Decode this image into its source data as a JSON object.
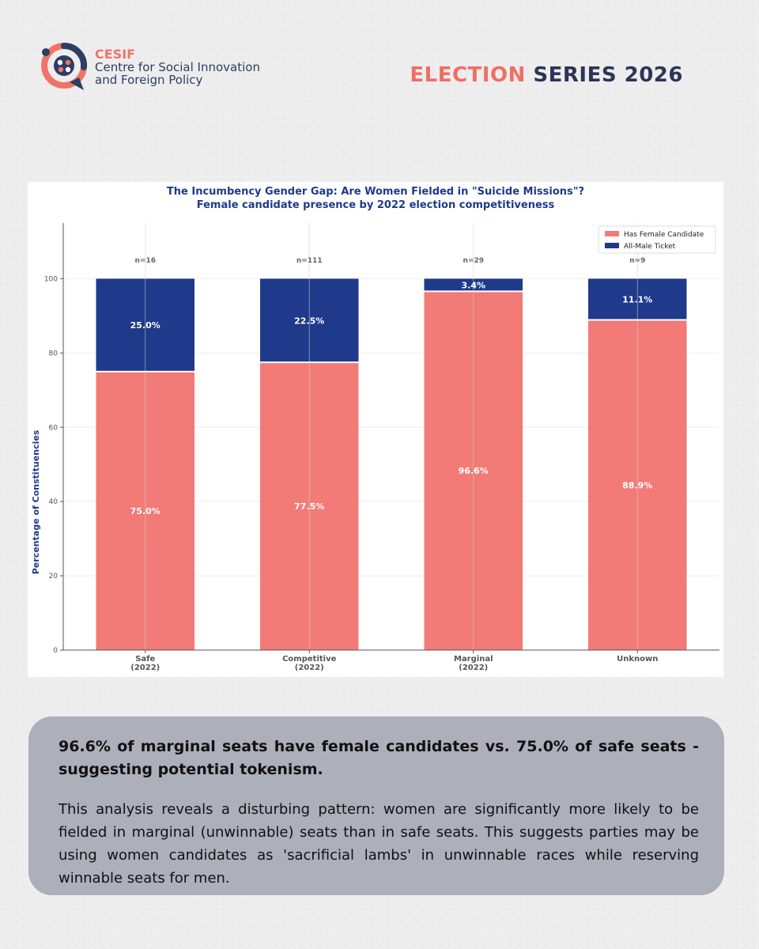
{
  "header": {
    "org_short": "CESIF",
    "org_line1": "Centre for Social Innovation",
    "org_line2": "and Foreign Policy",
    "series_accent": "ELECTION",
    "series_rest": "SERIES 2026",
    "accent_color": "#ef6f63",
    "navy_color": "#2d3555",
    "logo_icon": "cesif-logo-icon"
  },
  "chart_data": {
    "type": "bar",
    "stacked": true,
    "title": "The Incumbency Gender Gap: Are Women Fielded in \"Suicide Missions\"?",
    "subtitle": "Female candidate presence by 2022 election competitiveness",
    "xlabel": "",
    "ylabel": "Percentage of Constituencies",
    "ylim": [
      0,
      115
    ],
    "yticks": [
      0,
      20,
      40,
      60,
      80,
      100
    ],
    "grid": true,
    "legend_position": "top-right",
    "categories": [
      [
        "Safe",
        "(2022)"
      ],
      [
        "Competitive",
        "(2022)"
      ],
      [
        "Marginal",
        "(2022)"
      ],
      [
        "Unknown"
      ]
    ],
    "n_labels": [
      "n=16",
      "n=111",
      "n=29",
      "n=9"
    ],
    "series": [
      {
        "name": "Has Female Candidate",
        "color": "#f27a77",
        "values": [
          75.0,
          77.5,
          96.6,
          88.9
        ],
        "labels": [
          "75.0%",
          "77.5%",
          "96.6%",
          "88.9%"
        ]
      },
      {
        "name": "All-Male Ticket",
        "color": "#1f3a8a",
        "values": [
          25.0,
          22.5,
          3.4,
          11.1
        ],
        "labels": [
          "25.0%",
          "22.5%",
          "3.4%",
          "11.1%"
        ]
      }
    ]
  },
  "callout": {
    "headline": "96.6% of marginal seats have female candidates vs. 75.0% of safe seats - suggesting potential tokenism.",
    "body": "This analysis reveals a disturbing pattern: women are significantly more likely to be fielded in marginal (unwinnable) seats than in safe seats. This suggests parties may be using women candidates as 'sacrificial lambs' in unwinnable races while reserving winnable seats for men."
  }
}
